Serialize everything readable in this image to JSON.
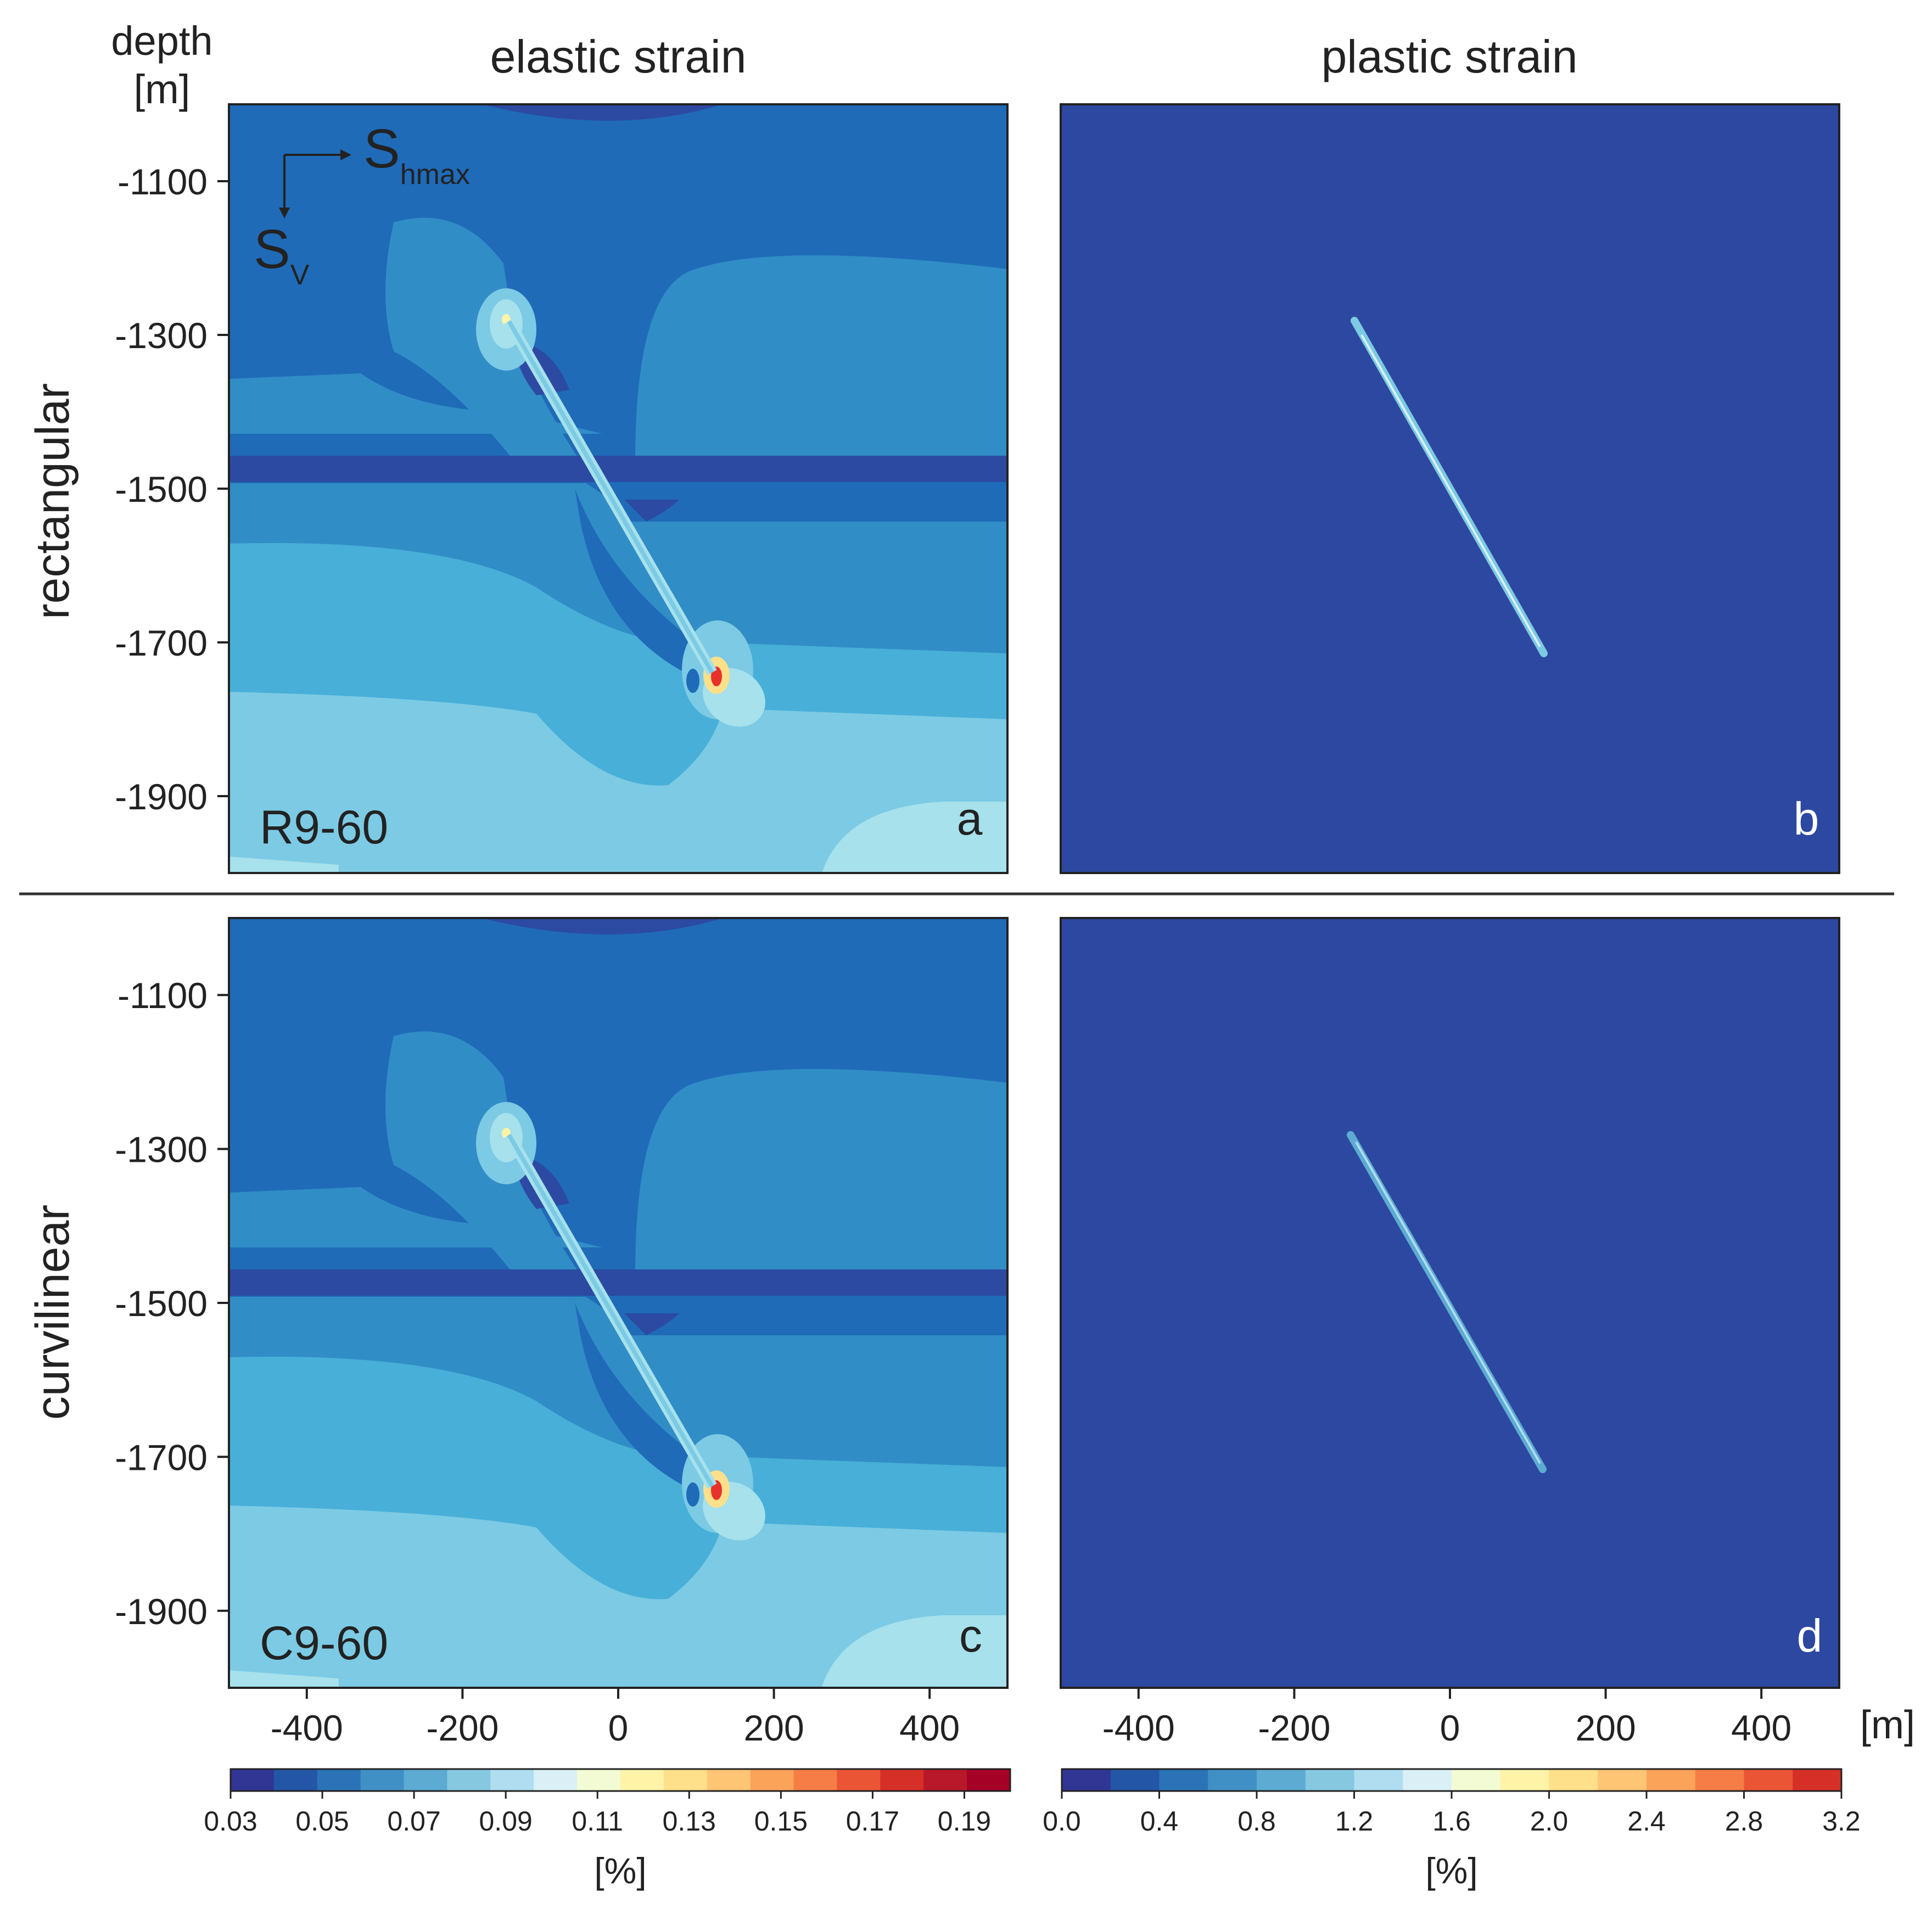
{
  "header": {
    "depth_label_line1": "depth",
    "depth_label_line2": "[m]",
    "col_left_title": "elastic strain",
    "col_right_title": "plastic strain",
    "row_top_label": "rectangular",
    "row_bottom_label": "curvilinear",
    "x_unit_label": "[m]"
  },
  "stress_arrows": {
    "horizontal_main": "S",
    "horizontal_sub": "hmax",
    "vertical_main": "S",
    "vertical_sub": "V"
  },
  "panels": {
    "a": {
      "letter": "a",
      "model_label": "R9-60"
    },
    "b": {
      "letter": "b"
    },
    "c": {
      "letter": "c",
      "model_label": "C9-60"
    },
    "d": {
      "letter": "d"
    }
  },
  "colors": {
    "background_blue": "#2c48a0",
    "elastic_levels": [
      "#2c4aa2",
      "#1f6bb8",
      "#318dc6",
      "#48afd8",
      "#7ccae4",
      "#a6e1ec"
    ],
    "fault_highlight": "#e8f6fb",
    "hot_spot": "#e8312a"
  },
  "chart_data": {
    "type": "contour",
    "x_axis": {
      "ticks": [
        -400,
        -200,
        0,
        200,
        400
      ],
      "range": [
        -500,
        500
      ],
      "unit": "[m]"
    },
    "y_axis": {
      "ticks": [
        -1100,
        -1300,
        -1500,
        -1700,
        -1900
      ],
      "range": [
        -2000,
        -1000
      ],
      "label": "depth [m]"
    },
    "fault_trace": {
      "x": [
        -130,
        125
      ],
      "y": [
        -1280,
        -1715
      ]
    },
    "colorbars": [
      {
        "field": "elastic strain",
        "unit": "[%]",
        "tick_labels": [
          "0.03",
          "0.05",
          "0.07",
          "0.09",
          "0.11",
          "0.13",
          "0.15",
          "0.17",
          "0.19"
        ],
        "range": [
          0.03,
          0.2
        ],
        "colors": [
          "#313695",
          "#2356a6",
          "#2b73b6",
          "#4090c5",
          "#5dabd2",
          "#86c8e0",
          "#b0def0",
          "#dbf0f6",
          "#f2fbd3",
          "#fff3a8",
          "#fee08b",
          "#fdc574",
          "#fca35a",
          "#f67d45",
          "#ea5536",
          "#d62f27",
          "#b8182a",
          "#a50026"
        ]
      },
      {
        "field": "plastic strain",
        "unit": "[%]",
        "tick_labels": [
          "0.0",
          "0.4",
          "0.8",
          "1.2",
          "1.6",
          "2.0",
          "2.4",
          "2.8",
          "3.2"
        ],
        "range": [
          0.0,
          3.2
        ],
        "colors": [
          "#313695",
          "#2356a6",
          "#2b73b6",
          "#4090c5",
          "#5dabd2",
          "#86c8e0",
          "#b0def0",
          "#dbf0f6",
          "#f2fbd3",
          "#fff3a8",
          "#fee08b",
          "#fdc574",
          "#fca35a",
          "#f67d45",
          "#ea5536",
          "#d62f27"
        ]
      }
    ]
  }
}
